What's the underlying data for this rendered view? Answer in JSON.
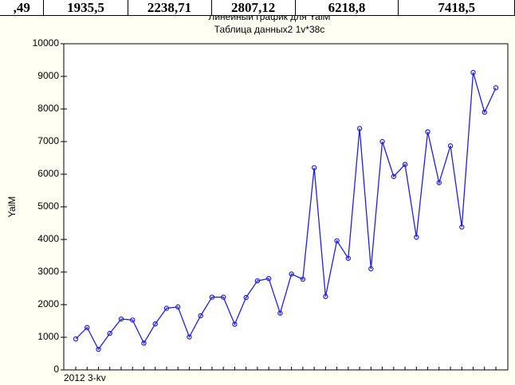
{
  "table_row": [
    ",49",
    "1935,5",
    "2238,71",
    "2807,12",
    "6218,8",
    "7418,5"
  ],
  "chart_data": {
    "type": "line",
    "title": "Линейный график для YalM",
    "subtitle": "Таблица данных2 1v*38c",
    "y_label": "YalM",
    "categories": [
      "2012 3-kv",
      null,
      null,
      null,
      null,
      null,
      null,
      null,
      null,
      null,
      null,
      null,
      null,
      null,
      null,
      null,
      null,
      null,
      null,
      null,
      null,
      null,
      null,
      null,
      null,
      null,
      null,
      null,
      null,
      null,
      null,
      null,
      null,
      null,
      null,
      null,
      null,
      null
    ],
    "series": [
      {
        "name": "YalM",
        "color": "#2020e0",
        "values": [
          950,
          1300,
          630,
          1120,
          1560,
          1530,
          820,
          1410,
          1890,
          1930,
          1010,
          1660,
          2230,
          2230,
          1400,
          2220,
          2730,
          2800,
          1740,
          2940,
          2780,
          6200,
          2250,
          3960,
          3420,
          7400,
          3100,
          7000,
          5930,
          6300,
          4070,
          7300,
          5740,
          6870,
          4380,
          9120,
          7900,
          8650
        ]
      }
    ],
    "ylim": [
      0,
      10000
    ],
    "yticks": [
      0,
      1000,
      2000,
      3000,
      4000,
      5000,
      6000,
      7000,
      8000,
      9000,
      10000
    ]
  }
}
